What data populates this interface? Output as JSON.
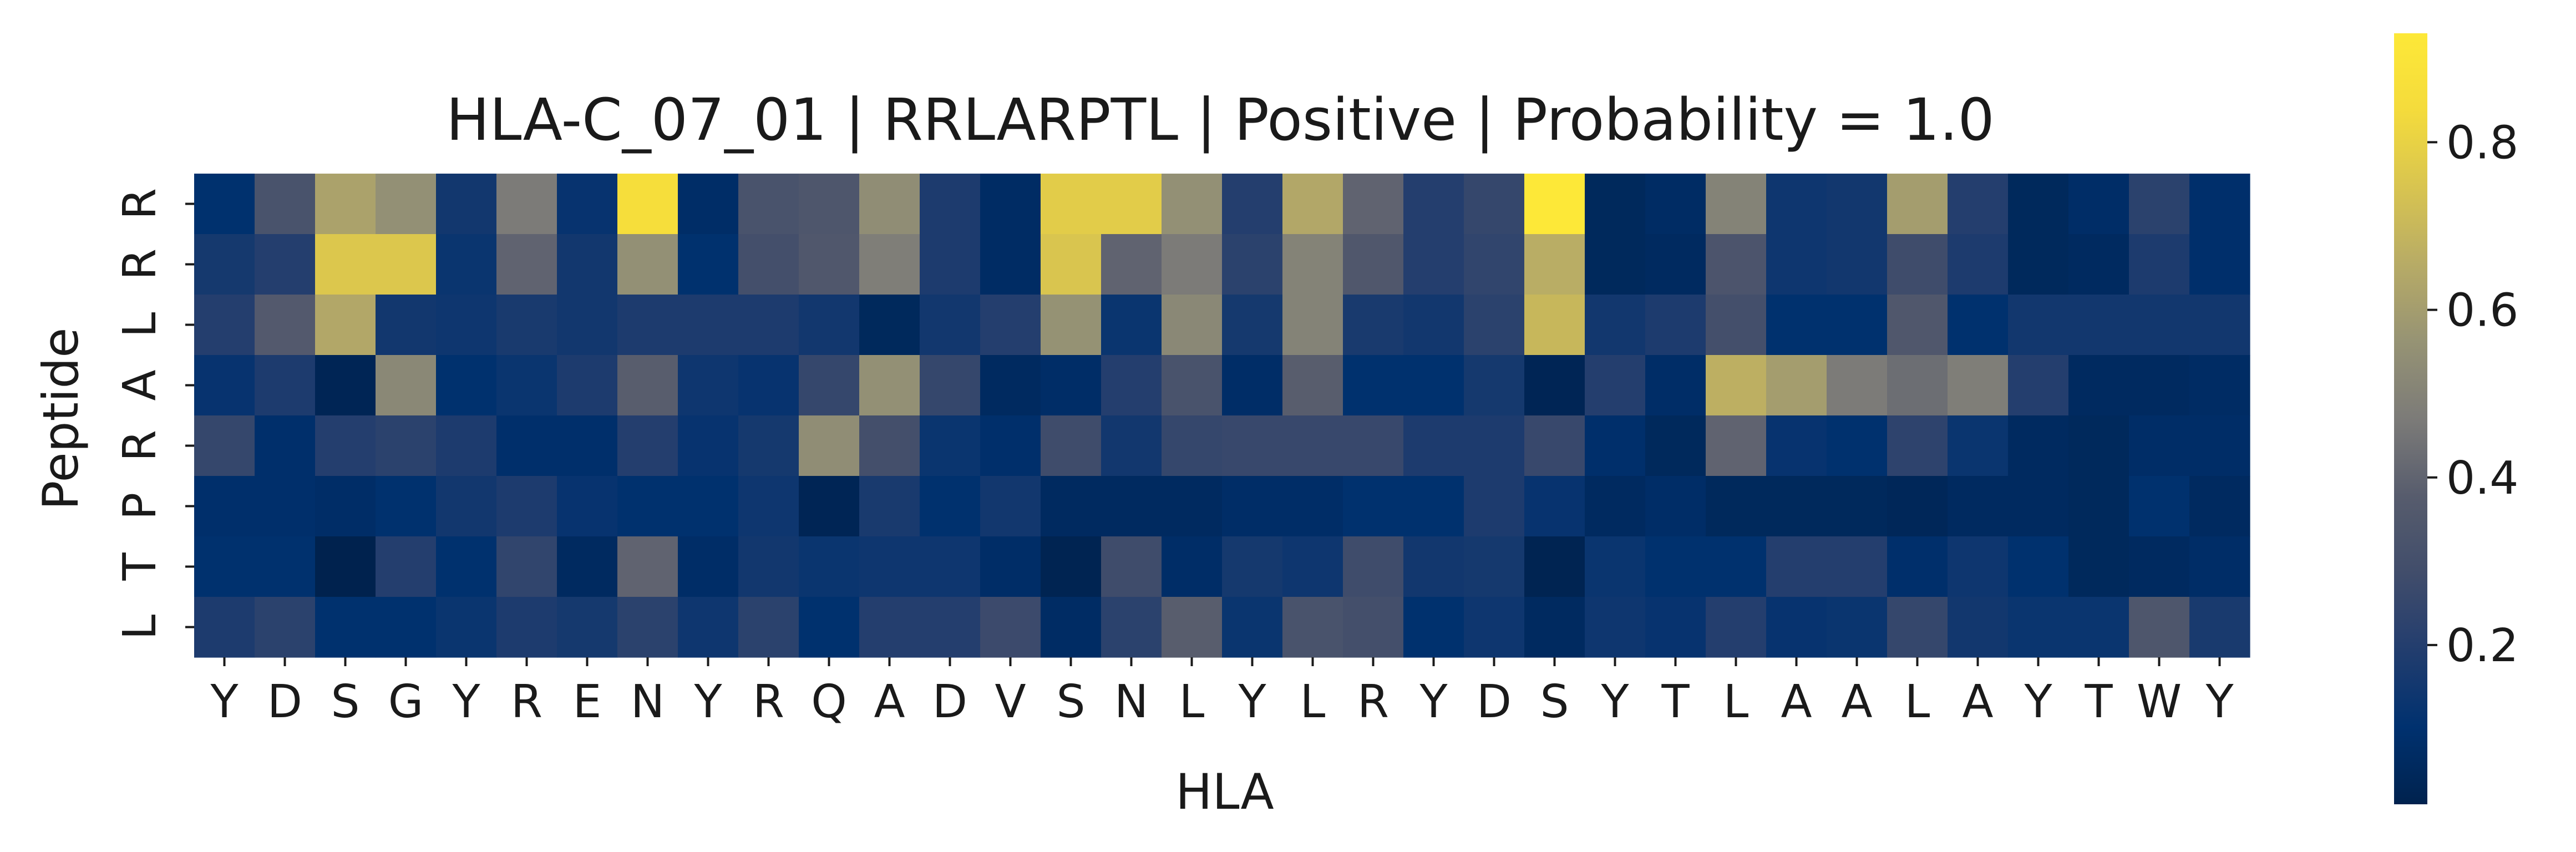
{
  "chart_data": {
    "type": "heatmap",
    "title": "HLA-C_07_01 | RRLARPTL | Positive | Probability = 1.0",
    "xlabel": "HLA",
    "ylabel": "Peptide",
    "x_labels": [
      "Y",
      "D",
      "S",
      "G",
      "Y",
      "R",
      "E",
      "N",
      "Y",
      "R",
      "Q",
      "A",
      "D",
      "V",
      "S",
      "N",
      "L",
      "Y",
      "L",
      "R",
      "Y",
      "D",
      "S",
      "Y",
      "T",
      "L",
      "A",
      "A",
      "L",
      "A",
      "Y",
      "T",
      "W",
      "Y"
    ],
    "y_labels": [
      "R",
      "R",
      "L",
      "A",
      "R",
      "P",
      "T",
      "L"
    ],
    "colormap": "cividis",
    "colorbar": {
      "ticks": [
        0.2,
        0.4,
        0.6,
        0.8
      ],
      "range": [
        0.01,
        0.93
      ]
    },
    "values": [
      [
        0.1,
        0.32,
        0.62,
        0.55,
        0.15,
        0.47,
        0.12,
        0.86,
        0.08,
        0.32,
        0.34,
        0.54,
        0.18,
        0.07,
        0.78,
        0.78,
        0.55,
        0.2,
        0.64,
        0.4,
        0.2,
        0.25,
        0.93,
        0.05,
        0.07,
        0.5,
        0.14,
        0.15,
        0.6,
        0.2,
        0.05,
        0.08,
        0.22,
        0.09
      ],
      [
        0.16,
        0.2,
        0.76,
        0.76,
        0.13,
        0.4,
        0.15,
        0.55,
        0.1,
        0.3,
        0.35,
        0.48,
        0.18,
        0.07,
        0.75,
        0.4,
        0.47,
        0.22,
        0.5,
        0.35,
        0.2,
        0.24,
        0.66,
        0.05,
        0.06,
        0.33,
        0.14,
        0.15,
        0.28,
        0.18,
        0.05,
        0.06,
        0.18,
        0.09
      ],
      [
        0.2,
        0.36,
        0.64,
        0.15,
        0.14,
        0.17,
        0.15,
        0.18,
        0.18,
        0.18,
        0.15,
        0.05,
        0.15,
        0.2,
        0.56,
        0.13,
        0.52,
        0.16,
        0.5,
        0.17,
        0.15,
        0.22,
        0.7,
        0.15,
        0.18,
        0.3,
        0.1,
        0.1,
        0.35,
        0.1,
        0.15,
        0.15,
        0.15,
        0.15
      ],
      [
        0.12,
        0.18,
        0.03,
        0.52,
        0.1,
        0.13,
        0.18,
        0.38,
        0.14,
        0.12,
        0.25,
        0.55,
        0.25,
        0.06,
        0.08,
        0.2,
        0.32,
        0.08,
        0.38,
        0.1,
        0.1,
        0.16,
        0.03,
        0.2,
        0.08,
        0.67,
        0.6,
        0.47,
        0.43,
        0.48,
        0.2,
        0.06,
        0.06,
        0.07
      ],
      [
        0.25,
        0.09,
        0.2,
        0.22,
        0.18,
        0.09,
        0.09,
        0.2,
        0.12,
        0.16,
        0.54,
        0.3,
        0.13,
        0.09,
        0.28,
        0.15,
        0.25,
        0.26,
        0.26,
        0.26,
        0.18,
        0.18,
        0.26,
        0.09,
        0.05,
        0.4,
        0.12,
        0.1,
        0.23,
        0.13,
        0.06,
        0.05,
        0.08,
        0.08
      ],
      [
        0.09,
        0.09,
        0.08,
        0.1,
        0.15,
        0.18,
        0.12,
        0.1,
        0.1,
        0.14,
        0.03,
        0.17,
        0.1,
        0.15,
        0.06,
        0.06,
        0.06,
        0.08,
        0.08,
        0.1,
        0.1,
        0.18,
        0.12,
        0.06,
        0.08,
        0.05,
        0.05,
        0.05,
        0.04,
        0.06,
        0.06,
        0.05,
        0.1,
        0.06
      ],
      [
        0.1,
        0.1,
        0.01,
        0.2,
        0.1,
        0.24,
        0.06,
        0.4,
        0.08,
        0.15,
        0.13,
        0.14,
        0.14,
        0.08,
        0.02,
        0.28,
        0.08,
        0.16,
        0.14,
        0.28,
        0.15,
        0.16,
        0.02,
        0.13,
        0.1,
        0.1,
        0.2,
        0.2,
        0.09,
        0.14,
        0.1,
        0.05,
        0.06,
        0.08
      ],
      [
        0.18,
        0.22,
        0.1,
        0.1,
        0.13,
        0.18,
        0.16,
        0.22,
        0.14,
        0.22,
        0.1,
        0.2,
        0.2,
        0.27,
        0.07,
        0.22,
        0.38,
        0.13,
        0.32,
        0.3,
        0.1,
        0.14,
        0.06,
        0.14,
        0.12,
        0.2,
        0.12,
        0.13,
        0.25,
        0.15,
        0.13,
        0.13,
        0.34,
        0.17
      ]
    ]
  }
}
